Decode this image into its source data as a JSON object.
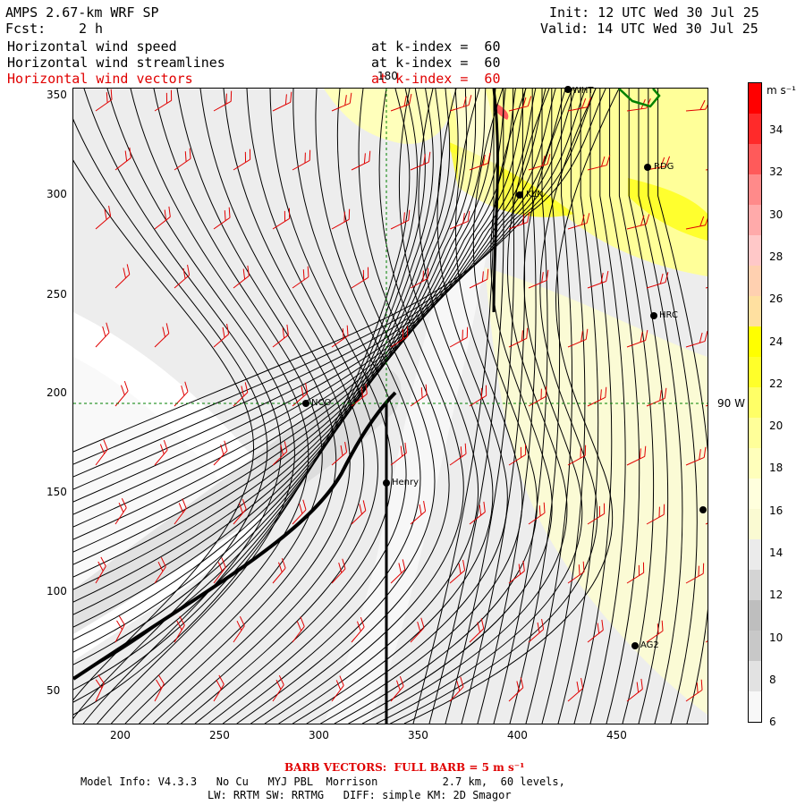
{
  "header": {
    "model": "AMPS 2.67-km WRF SP",
    "fcst_label": "Fcst:",
    "fcst_value": "2 h",
    "init": "Init: 12 UTC Wed 30 Jul 25",
    "valid": "Valid: 14 UTC Wed 30 Jul 25",
    "fields": [
      {
        "name": "Horizontal wind speed",
        "level": "at k-index =  60"
      },
      {
        "name": "Horizontal wind streamlines",
        "level": "at k-index =  60"
      },
      {
        "name": "Horizontal wind vectors",
        "level": "at k-index =  60"
      }
    ]
  },
  "map": {
    "x_ticks": [
      "200",
      "250",
      "300",
      "350",
      "400",
      "450"
    ],
    "y_ticks": [
      "350",
      "300",
      "250",
      "200",
      "150",
      "100",
      "50"
    ],
    "longitude_labels": [
      "180",
      "90 W"
    ],
    "stations": [
      "WHT",
      "RDG",
      "KLN",
      "HRC",
      "NCO",
      "Henry",
      "AG2",
      ""
    ],
    "colors": {
      "vector": "#e00000",
      "streamline": "#000000",
      "graticule": "#008000",
      "coast": "#008000"
    }
  },
  "colorbar": {
    "unit": "m s⁻¹",
    "labels": [
      "34",
      "32",
      "30",
      "28",
      "26",
      "24",
      "22",
      "20",
      "18",
      "16",
      "14",
      "12",
      "10",
      "8",
      "6"
    ],
    "colors": [
      "#ff0000",
      "#ff2a2a",
      "#ff5a5a",
      "#ff8a8a",
      "#ffaaaa",
      "#ffc8c8",
      "#ffd0b0",
      "#ffe0a0",
      "#ffff00",
      "#ffff2a",
      "#ffff66",
      "#ffff99",
      "#ffffbb",
      "#ffffdd",
      "#fafad2",
      "#ebebeb",
      "#d4d4d4",
      "#bebebe",
      "#c8c8c8",
      "#e2e2e2",
      "#f8f8f8"
    ]
  },
  "footer": {
    "barb": "BARB VECTORS:  FULL BARB = 5 m s⁻¹",
    "model_info": "Model Info: V4.3.3   No Cu   MYJ PBL  Morrison          2.7 km,  60 levels,",
    "physics": "LW: RRTM SW: RRTMG   DIFF: simple KM: 2D Smagor"
  }
}
